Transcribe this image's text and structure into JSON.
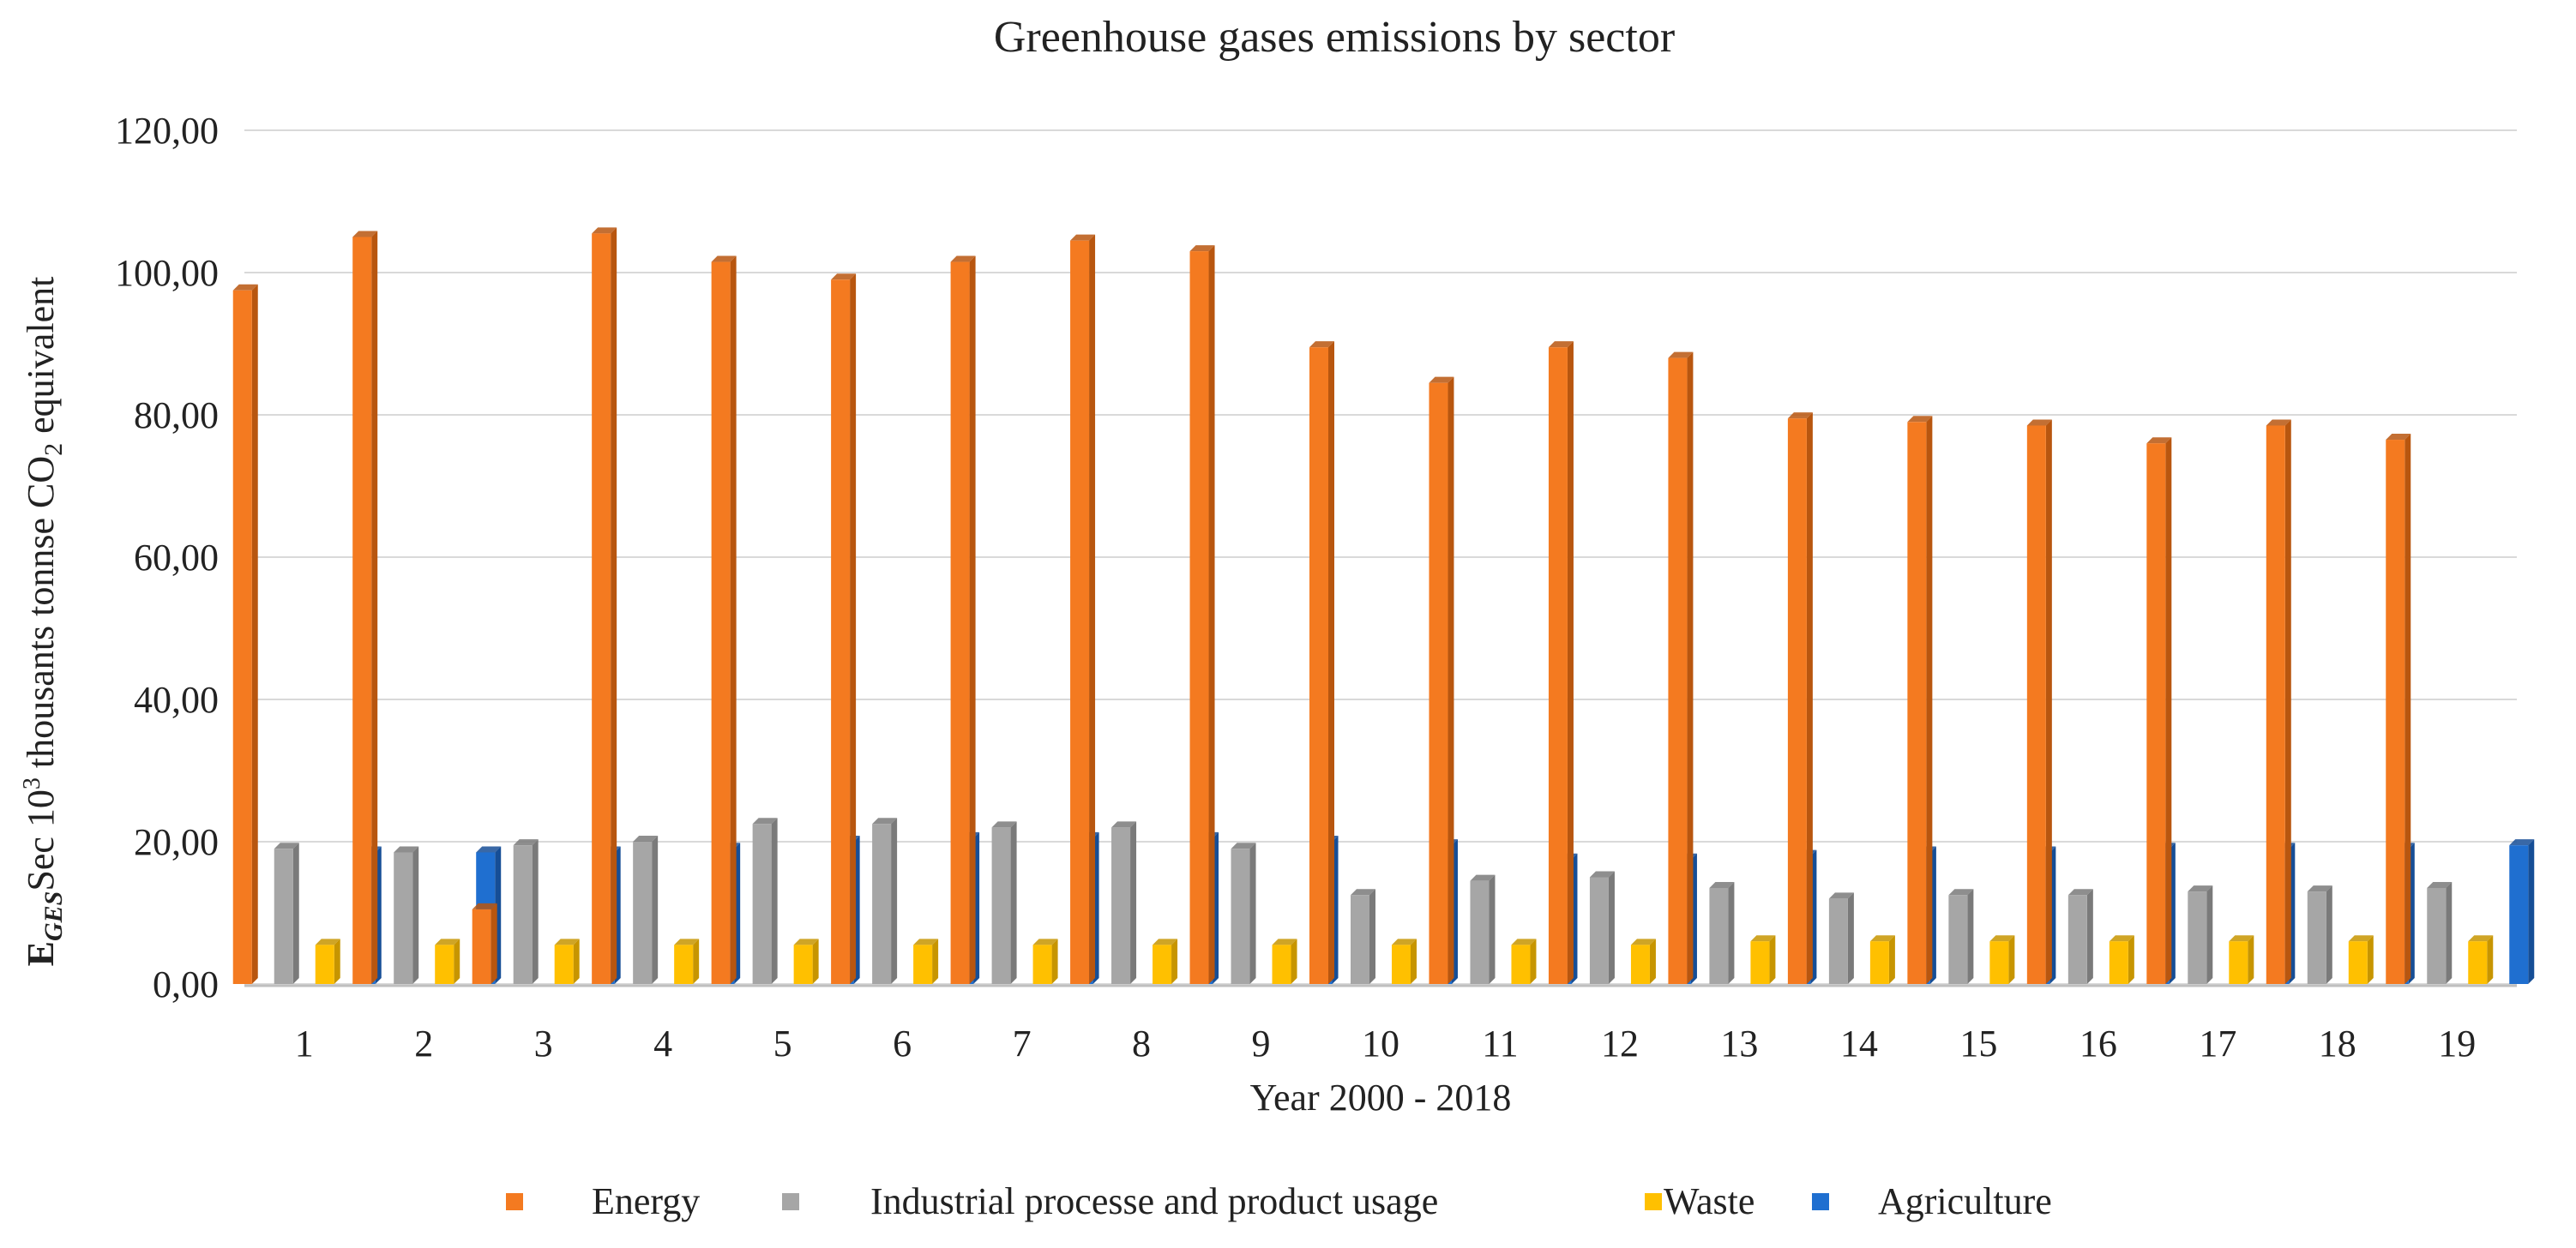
{
  "chart_data": {
    "type": "bar",
    "title": "Greenhouse gases emissions by sector",
    "xlabel": "Year 2000 - 2018",
    "ylabel": {
      "main": "E",
      "subscript": "GES",
      "middle": "Sec  10",
      "superscript": "3",
      "rest": " thousants tonnse CO",
      "co2_subscript": "2",
      "tail": " equivalent"
    },
    "ylim": [
      0,
      120
    ],
    "yticks": [
      "0,00",
      "20,00",
      "40,00",
      "60,00",
      "80,00",
      "100,00",
      "120,00"
    ],
    "categories": [
      "1",
      "2",
      "3",
      "4",
      "5",
      "6",
      "7",
      "8",
      "9",
      "10",
      "11",
      "12",
      "13",
      "14",
      "15",
      "16",
      "17",
      "18",
      "19"
    ],
    "series": [
      {
        "name": "Energy",
        "color": "#F47A20",
        "shade": "#B8560F",
        "values": [
          97.5,
          105.0,
          10.5,
          105.5,
          101.5,
          99.0,
          101.5,
          104.5,
          103.0,
          89.5,
          84.5,
          89.5,
          88.0,
          79.5,
          79.0,
          78.5,
          76.0,
          78.5,
          76.5
        ]
      },
      {
        "name": "Industrial processe and product usage",
        "color": "#A6A6A6",
        "shade": "#7A7A7A",
        "values": [
          19.0,
          18.5,
          19.5,
          20.0,
          22.5,
          22.5,
          22.0,
          22.0,
          19.0,
          12.5,
          14.5,
          15.0,
          13.5,
          12.0,
          12.5,
          12.5,
          13.0,
          13.0,
          13.5
        ]
      },
      {
        "name": "Waste",
        "color": "#FFC000",
        "shade": "#C79500",
        "values": [
          5.5,
          5.5,
          5.5,
          5.5,
          5.5,
          5.5,
          5.5,
          5.5,
          5.5,
          5.5,
          5.5,
          5.5,
          6.0,
          6.0,
          6.0,
          6.0,
          6.0,
          6.0,
          6.0
        ]
      },
      {
        "name": "Agriculture",
        "color": "#1F6FD0",
        "shade": "#164E96",
        "values": [
          18.5,
          18.5,
          18.5,
          19.0,
          20.0,
          20.5,
          20.5,
          20.5,
          20.0,
          19.5,
          17.5,
          17.5,
          18.0,
          18.5,
          18.5,
          19.0,
          19.0,
          19.0,
          19.5
        ]
      }
    ],
    "legend_position": "bottom",
    "grid": true
  }
}
